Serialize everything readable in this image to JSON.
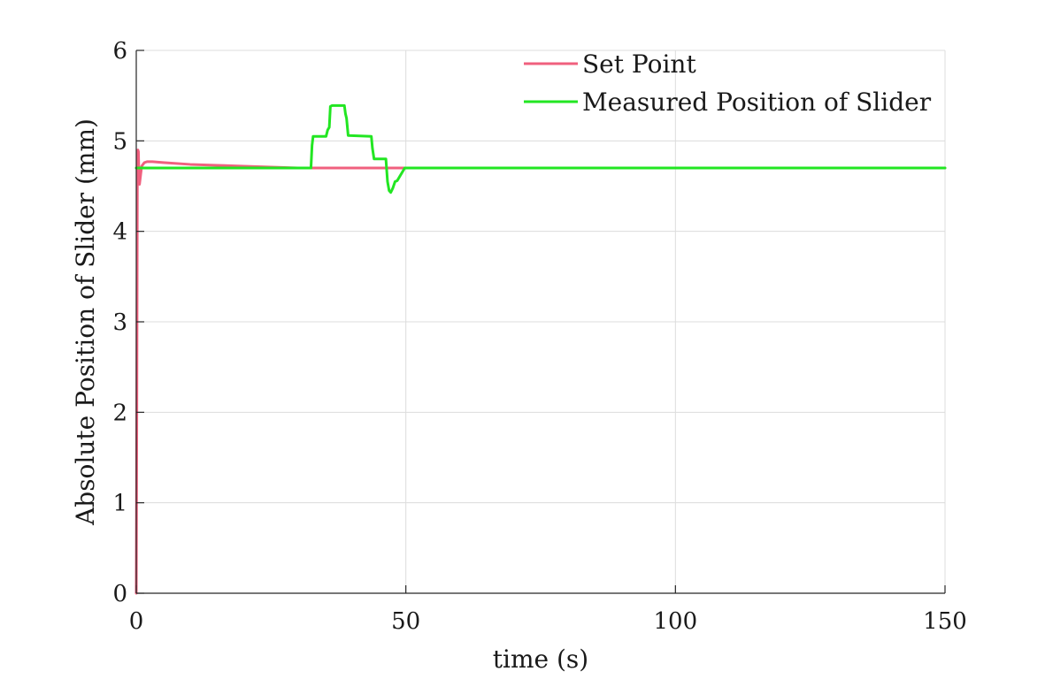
{
  "chart_data": {
    "type": "line",
    "title": "",
    "xlabel": "time (s)",
    "ylabel": "Absolute Position of Slider (mm)",
    "xlim": [
      0,
      150
    ],
    "ylim": [
      0,
      6
    ],
    "xticks": [
      0,
      50,
      100,
      150
    ],
    "yticks": [
      0,
      1,
      2,
      3,
      4,
      5,
      6
    ],
    "xtick_labels": [
      "0",
      "50",
      "100",
      "150"
    ],
    "ytick_labels": [
      "0",
      "1",
      "2",
      "3",
      "4",
      "5",
      "6"
    ],
    "grid": true,
    "legend_position": "top-right",
    "series": [
      {
        "name": "Set Point",
        "color": "#f0607e",
        "x": [
          0,
          0.1,
          0.2,
          0.3,
          0.4,
          0.5,
          0.6,
          0.8,
          1.0,
          1.5,
          2,
          3,
          5,
          10,
          15,
          20,
          25,
          30,
          35,
          40,
          45,
          50,
          60,
          80,
          100,
          120,
          150
        ],
        "y": [
          0,
          2.0,
          4.5,
          4.9,
          4.88,
          4.6,
          4.52,
          4.62,
          4.72,
          4.76,
          4.77,
          4.77,
          4.76,
          4.74,
          4.73,
          4.72,
          4.71,
          4.7,
          4.7,
          4.7,
          4.7,
          4.7,
          4.7,
          4.7,
          4.7,
          4.7,
          4.7
        ]
      },
      {
        "name": "Measured Position of Slider",
        "color": "#22e622",
        "x": [
          0,
          32.4,
          32.6,
          32.8,
          35.2,
          35.5,
          35.8,
          36.0,
          36.3,
          38.6,
          38.8,
          39.0,
          39.3,
          43.6,
          43.8,
          44.1,
          46.3,
          46.6,
          46.9,
          47.2,
          47.6,
          48.0,
          48.4,
          48.8,
          49.3,
          49.8,
          50.2,
          60,
          80,
          100,
          120,
          150
        ],
        "y": [
          4.7,
          4.7,
          4.95,
          5.05,
          5.05,
          5.12,
          5.15,
          5.38,
          5.39,
          5.39,
          5.3,
          5.25,
          5.06,
          5.05,
          4.92,
          4.8,
          4.8,
          4.55,
          4.45,
          4.43,
          4.48,
          4.55,
          4.56,
          4.6,
          4.65,
          4.7,
          4.7,
          4.7,
          4.7,
          4.7,
          4.7,
          4.7
        ]
      }
    ]
  }
}
